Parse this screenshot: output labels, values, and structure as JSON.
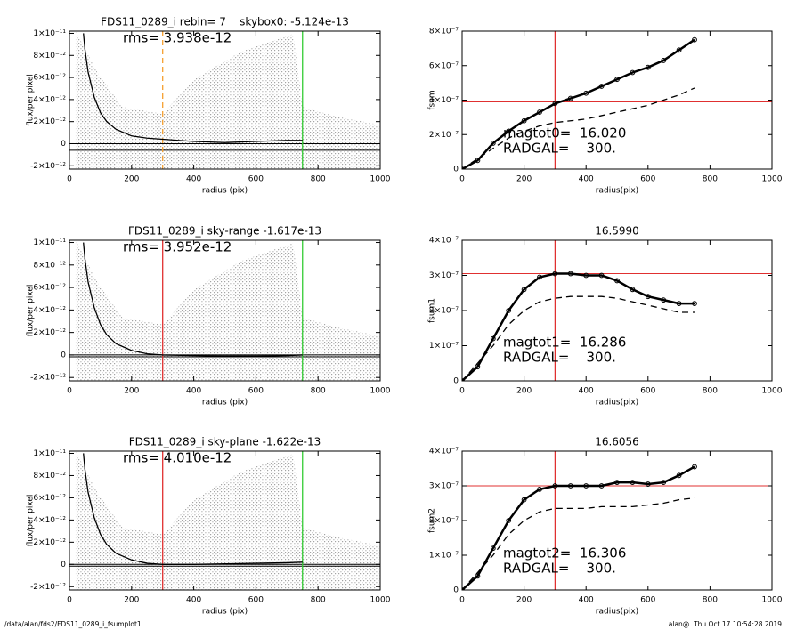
{
  "chart_data": [
    {
      "type": "line",
      "title": "FDS11_0289_i rebin= 7    skybox0: -5.124e-13",
      "annotations": [
        "rms= 3.938e-12"
      ],
      "xlabel": "radius (pix)",
      "ylabel": "flux/per pixel",
      "xlim": [
        0,
        1000
      ],
      "xticks": [
        0,
        200,
        400,
        600,
        800,
        1000
      ],
      "ylim": [
        -2.3e-12,
        1.02e-11
      ],
      "yticks": [
        {
          "value": -2e-12,
          "label": "-2×10⁻¹²"
        },
        0,
        {
          "value": 2e-12,
          "label": "2×10⁻¹²"
        },
        {
          "value": 4e-12,
          "label": "4×10⁻¹²"
        },
        {
          "value": 6e-12,
          "label": "6×10⁻¹²"
        },
        {
          "value": 8e-12,
          "label": "8×10⁻¹²"
        },
        {
          "value": 1e-11,
          "label": "1×10⁻¹¹"
        }
      ],
      "x": [
        45,
        50,
        60,
        80,
        100,
        120,
        150,
        200,
        250,
        300,
        400,
        500,
        600,
        700,
        750
      ],
      "series": [
        {
          "color": "#000000",
          "values": [
            1e-11,
            8.5e-12,
            6.5e-12,
            4.2e-12,
            2.8e-12,
            2e-12,
            1.3e-12,
            7e-13,
            5e-13,
            4e-13,
            2e-13,
            1e-13,
            2e-13,
            3e-13,
            3e-13
          ]
        }
      ],
      "vlines": [
        {
          "x": 300,
          "color": "#f5a030",
          "dash": true
        },
        {
          "x": 750,
          "color": "#33cc33"
        }
      ],
      "hlines": [
        {
          "y": 0,
          "color": "#000000"
        },
        {
          "y": -6e-13,
          "color": "#000000"
        }
      ]
    },
    {
      "type": "line",
      "title": "FDS11_0289_i sky-range -1.617e-13",
      "annotations": [
        "rms= 3.952e-12"
      ],
      "xlabel": "radius (pix)",
      "ylabel": "flux/per pixel",
      "xlim": [
        0,
        1000
      ],
      "xticks": [
        0,
        200,
        400,
        600,
        800,
        1000
      ],
      "ylim": [
        -2.3e-12,
        1.02e-11
      ],
      "yticks": [
        {
          "value": -2e-12,
          "label": "-2×10⁻¹²"
        },
        0,
        {
          "value": 2e-12,
          "label": "2×10⁻¹²"
        },
        {
          "value": 4e-12,
          "label": "4×10⁻¹²"
        },
        {
          "value": 6e-12,
          "label": "6×10⁻¹²"
        },
        {
          "value": 8e-12,
          "label": "8×10⁻¹²"
        },
        {
          "value": 1e-11,
          "label": "1×10⁻¹¹"
        }
      ],
      "x": [
        45,
        50,
        60,
        80,
        100,
        120,
        150,
        200,
        250,
        300,
        400,
        500,
        600,
        700,
        750
      ],
      "series": [
        {
          "color": "#000000",
          "values": [
            1e-11,
            8.5e-12,
            6.5e-12,
            4.2e-12,
            2.7e-12,
            1.8e-12,
            1e-12,
            4e-13,
            1e-13,
            0,
            -5e-14,
            -1e-13,
            -1e-13,
            -5e-14,
            0
          ]
        }
      ],
      "vlines": [
        {
          "x": 300,
          "color": "#e03030"
        },
        {
          "x": 750,
          "color": "#33cc33"
        }
      ],
      "hlines": [
        {
          "y": 0,
          "color": "#000000"
        },
        {
          "y": -1.6e-13,
          "color": "#000000"
        }
      ]
    },
    {
      "type": "line",
      "title": "FDS11_0289_i sky-plane -1.622e-13",
      "annotations": [
        "rms= 4.010e-12"
      ],
      "xlabel": "radius (pix)",
      "ylabel": "flux/per pixel",
      "xlim": [
        0,
        1000
      ],
      "xticks": [
        0,
        200,
        400,
        600,
        800,
        1000
      ],
      "ylim": [
        -2.3e-12,
        1.02e-11
      ],
      "yticks": [
        {
          "value": -2e-12,
          "label": "-2×10⁻¹²"
        },
        0,
        {
          "value": 2e-12,
          "label": "2×10⁻¹²"
        },
        {
          "value": 4e-12,
          "label": "4×10⁻¹²"
        },
        {
          "value": 6e-12,
          "label": "6×10⁻¹²"
        },
        {
          "value": 8e-12,
          "label": "8×10⁻¹²"
        },
        {
          "value": 1e-11,
          "label": "1×10⁻¹¹"
        }
      ],
      "x": [
        45,
        50,
        60,
        80,
        100,
        120,
        150,
        200,
        250,
        300,
        400,
        500,
        600,
        700,
        750
      ],
      "series": [
        {
          "color": "#000000",
          "values": [
            1e-11,
            8.5e-12,
            6.5e-12,
            4.2e-12,
            2.7e-12,
            1.8e-12,
            1e-12,
            4e-13,
            1e-13,
            0,
            0,
            5e-14,
            1e-13,
            1.5e-13,
            2e-13
          ]
        }
      ],
      "vlines": [
        {
          "x": 300,
          "color": "#e03030"
        },
        {
          "x": 750,
          "color": "#33cc33"
        }
      ],
      "hlines": [
        {
          "y": 0,
          "color": "#000000"
        },
        {
          "y": -1.6e-13,
          "color": "#000000"
        }
      ]
    },
    {
      "type": "line",
      "annotations": [
        "magtot0=  16.020",
        "RADGAL=    300."
      ],
      "xlabel": "radius(pix)",
      "ylabel": "fsum",
      "xlim": [
        0,
        1000
      ],
      "xticks": [
        0,
        200,
        400,
        600,
        800,
        1000
      ],
      "ylim": [
        0,
        8e-07
      ],
      "yticks": [
        0,
        {
          "value": 2e-07,
          "label": "2×10⁻⁷"
        },
        {
          "value": 4e-07,
          "label": "4×10⁻⁷"
        },
        {
          "value": 6e-07,
          "label": "6×10⁻⁷"
        },
        {
          "value": 8e-07,
          "label": "8×10⁻⁷"
        }
      ],
      "x": [
        0,
        50,
        100,
        150,
        200,
        250,
        300,
        350,
        400,
        450,
        500,
        550,
        600,
        650,
        700,
        750
      ],
      "series": [
        {
          "color": "#000000",
          "marker": "circle",
          "values": [
            0,
            5e-08,
            1.5e-07,
            2.2e-07,
            2.8e-07,
            3.3e-07,
            3.8e-07,
            4.1e-07,
            4.4e-07,
            4.8e-07,
            5.2e-07,
            5.6e-07,
            5.9e-07,
            6.3e-07,
            6.9e-07,
            7.5e-07
          ]
        },
        {
          "color": "#000000",
          "dash": true,
          "values": [
            0,
            6e-08,
            1.2e-07,
            1.8e-07,
            2.2e-07,
            2.5e-07,
            2.7e-07,
            2.8e-07,
            2.9e-07,
            3.1e-07,
            3.3e-07,
            3.5e-07,
            3.7e-07,
            4e-07,
            4.3e-07,
            4.7e-07
          ]
        }
      ],
      "vlines": [
        {
          "x": 300,
          "color": "#e03030"
        }
      ],
      "hlines": [
        {
          "y": 3.9e-07,
          "color": "#e03030"
        }
      ]
    },
    {
      "type": "line",
      "title": "16.5990",
      "annotations": [
        "magtot1=  16.286",
        "RADGAL=    300."
      ],
      "xlabel": "radius(pix)",
      "ylabel": "fsum1",
      "xlim": [
        0,
        1000
      ],
      "xticks": [
        0,
        200,
        400,
        600,
        800,
        1000
      ],
      "ylim": [
        0,
        4e-07
      ],
      "yticks": [
        0,
        {
          "value": 1e-07,
          "label": "1×10⁻⁷"
        },
        {
          "value": 2e-07,
          "label": "2×10⁻⁷"
        },
        {
          "value": 3e-07,
          "label": "3×10⁻⁷"
        },
        {
          "value": 4e-07,
          "label": "4×10⁻⁷"
        }
      ],
      "x": [
        0,
        50,
        100,
        150,
        200,
        250,
        300,
        350,
        400,
        450,
        500,
        550,
        600,
        650,
        700,
        750
      ],
      "series": [
        {
          "color": "#000000",
          "marker": "circle",
          "values": [
            0,
            4e-08,
            1.2e-07,
            2e-07,
            2.6e-07,
            2.95e-07,
            3.05e-07,
            3.05e-07,
            3e-07,
            3e-07,
            2.85e-07,
            2.6e-07,
            2.4e-07,
            2.3e-07,
            2.2e-07,
            2.2e-07
          ]
        },
        {
          "color": "#000000",
          "dash": true,
          "values": [
            0,
            5e-08,
            1e-07,
            1.6e-07,
            2e-07,
            2.25e-07,
            2.35e-07,
            2.4e-07,
            2.4e-07,
            2.4e-07,
            2.35e-07,
            2.25e-07,
            2.15e-07,
            2.05e-07,
            1.95e-07,
            1.95e-07
          ]
        }
      ],
      "vlines": [
        {
          "x": 300,
          "color": "#e03030"
        }
      ],
      "hlines": [
        {
          "y": 3.05e-07,
          "color": "#e03030"
        }
      ]
    },
    {
      "type": "line",
      "title": "16.6056",
      "annotations": [
        "magtot2=  16.306",
        "RADGAL=    300."
      ],
      "xlabel": "radius(pix)",
      "ylabel": "fsum2",
      "xlim": [
        0,
        1000
      ],
      "xticks": [
        0,
        200,
        400,
        600,
        800,
        1000
      ],
      "ylim": [
        0,
        4e-07
      ],
      "yticks": [
        0,
        {
          "value": 1e-07,
          "label": "1×10⁻⁷"
        },
        {
          "value": 2e-07,
          "label": "2×10⁻⁷"
        },
        {
          "value": 3e-07,
          "label": "3×10⁻⁷"
        },
        {
          "value": 4e-07,
          "label": "4×10⁻⁷"
        }
      ],
      "x": [
        0,
        50,
        100,
        150,
        200,
        250,
        300,
        350,
        400,
        450,
        500,
        550,
        600,
        650,
        700,
        750
      ],
      "series": [
        {
          "color": "#000000",
          "marker": "circle",
          "values": [
            0,
            4e-08,
            1.2e-07,
            2e-07,
            2.6e-07,
            2.9e-07,
            3e-07,
            3e-07,
            3e-07,
            3e-07,
            3.1e-07,
            3.1e-07,
            3.05e-07,
            3.1e-07,
            3.3e-07,
            3.55e-07
          ]
        },
        {
          "color": "#000000",
          "dash": true,
          "values": [
            0,
            5e-08,
            1e-07,
            1.6e-07,
            2e-07,
            2.25e-07,
            2.35e-07,
            2.35e-07,
            2.35e-07,
            2.4e-07,
            2.4e-07,
            2.4e-07,
            2.45e-07,
            2.5e-07,
            2.6e-07,
            2.65e-07
          ]
        }
      ],
      "vlines": [
        {
          "x": 300,
          "color": "#e03030"
        }
      ],
      "hlines": [
        {
          "y": 3e-07,
          "color": "#e03030"
        }
      ]
    }
  ],
  "footer": {
    "left": "/data/alan/fds2/FDS11_0289_i_fsumplot1",
    "right": "alan@  Thu Oct 17 10:54:28 2019"
  }
}
